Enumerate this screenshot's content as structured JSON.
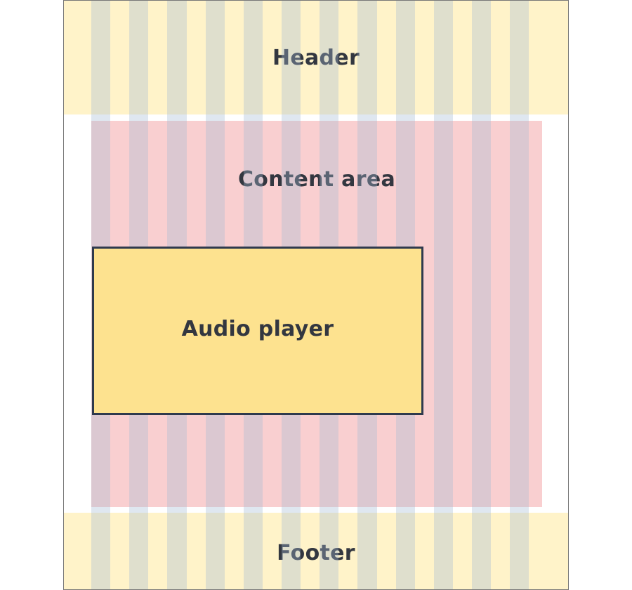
{
  "diagram": {
    "header_label": "Header",
    "content_label": "Content area",
    "player_label": "Audio player",
    "footer_label": "Footer",
    "column_count": 12
  },
  "colors": {
    "header_footer_fill": "#fff3c9",
    "content_fill": "#f9cfd0",
    "grid_column_tint": "#a3b9d4",
    "player_fill": "#fde28f",
    "player_border": "#2f3a4d",
    "label_text": "#333740"
  }
}
